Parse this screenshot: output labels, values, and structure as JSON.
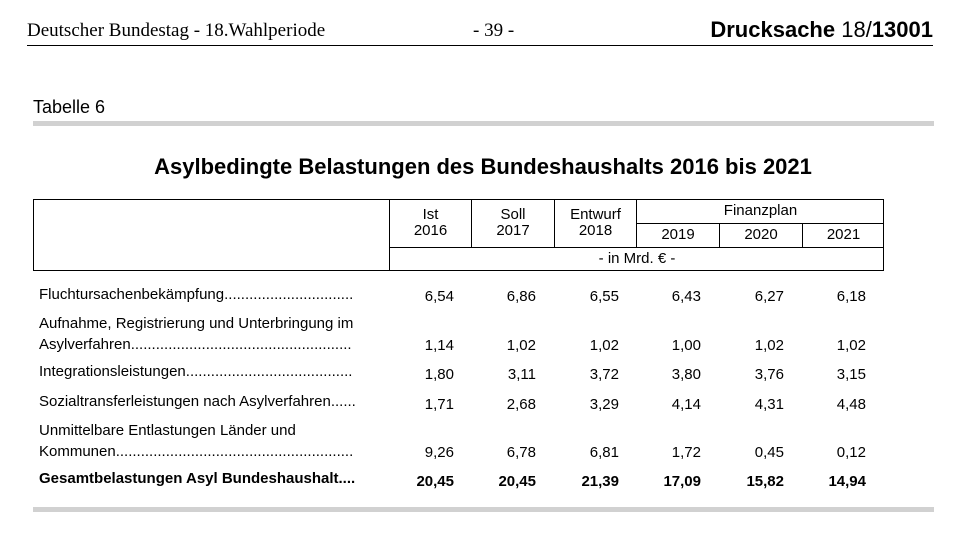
{
  "header": {
    "left": "Deutscher Bundestag - 18.Wahlperiode",
    "center": "- 39 -",
    "doc_prefix": "Drucksache ",
    "doc_session": "18/",
    "doc_number": "13001"
  },
  "table_label": "Tabelle 6",
  "title": "Asylbedingte Belastungen des Bundeshaushalts 2016 bis 2021",
  "columns": {
    "ist": [
      "Ist",
      "2016"
    ],
    "soll": [
      "Soll",
      "2017"
    ],
    "entwurf": [
      "Entwurf",
      "2018"
    ],
    "finanzplan": "Finanzplan",
    "years": [
      "2019",
      "2020",
      "2021"
    ],
    "unit": "- in Mrd. € -"
  },
  "rows": [
    {
      "label1": "Fluchtursachenbekämpfung...............................",
      "label2": "",
      "values": [
        "6,54",
        "6,86",
        "6,55",
        "6,43",
        "6,27",
        "6,18"
      ]
    },
    {
      "label1": "Aufnahme, Registrierung und Unterbringung im",
      "label2": "Asylverfahren.....................................................",
      "values": [
        "1,14",
        "1,02",
        "1,02",
        "1,00",
        "1,02",
        "1,02"
      ]
    },
    {
      "label1": "Integrationsleistungen........................................",
      "label2": "",
      "values": [
        "1,80",
        "3,11",
        "3,72",
        "3,80",
        "3,76",
        "3,15"
      ]
    },
    {
      "label1": "Sozialtransferleistungen nach Asylverfahren......",
      "label2": "",
      "values": [
        "1,71",
        "2,68",
        "3,29",
        "4,14",
        "4,31",
        "4,48"
      ]
    },
    {
      "label1": "Unmittelbare Entlastungen Länder und",
      "label2": "Kommunen.........................................................",
      "values": [
        "9,26",
        "6,78",
        "6,81",
        "1,72",
        "0,45",
        "0,12"
      ]
    }
  ],
  "total": {
    "label": "Gesamtbelastungen Asyl Bundeshaushalt....",
    "values": [
      "20,45",
      "20,45",
      "21,39",
      "17,09",
      "15,82",
      "14,94"
    ]
  }
}
